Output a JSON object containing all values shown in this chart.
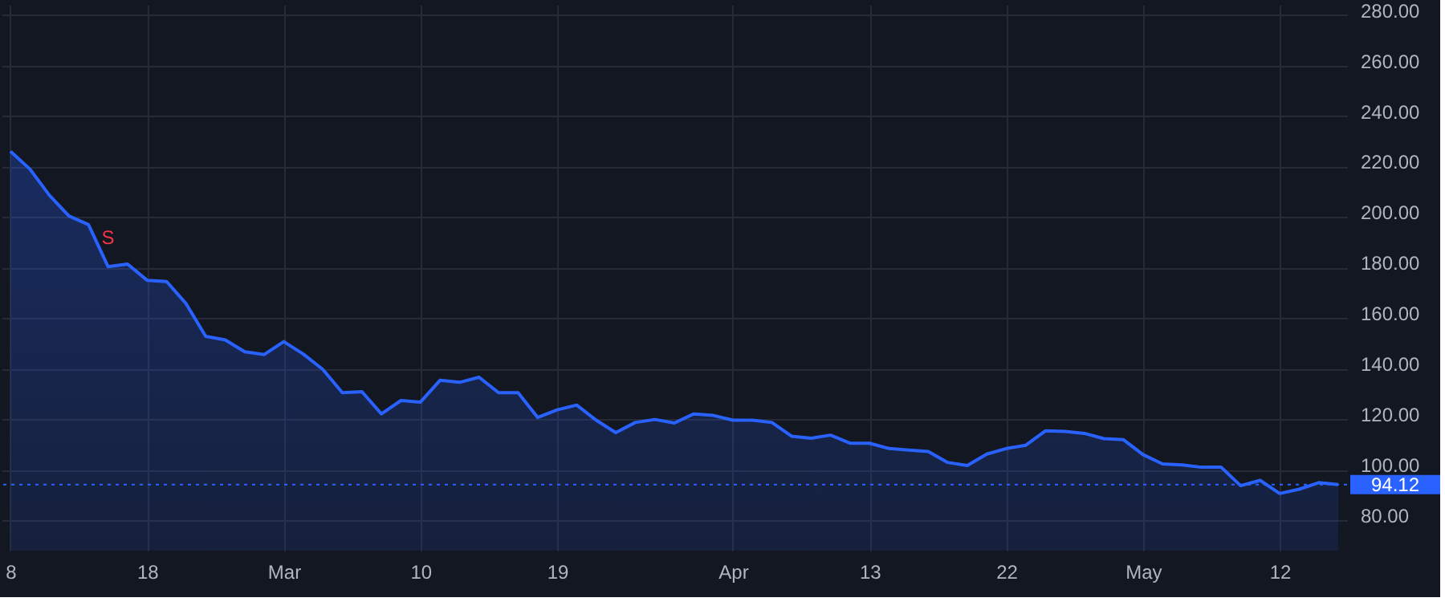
{
  "chart_data": {
    "type": "area",
    "categories": [
      "8",
      null,
      null,
      null,
      null,
      null,
      null,
      "18",
      null,
      null,
      null,
      null,
      null,
      null,
      "Mar",
      null,
      null,
      null,
      null,
      null,
      null,
      "10",
      null,
      null,
      null,
      null,
      null,
      null,
      "19",
      null,
      null,
      null,
      null,
      null,
      null,
      null,
      null,
      "Apr",
      null,
      null,
      null,
      null,
      null,
      null,
      "13",
      null,
      null,
      null,
      null,
      null,
      null,
      "22",
      null,
      null,
      null,
      null,
      null,
      null,
      "May",
      null,
      null,
      null,
      null,
      null,
      null,
      "12",
      null,
      null,
      null
    ],
    "series": [
      {
        "color": "#2962ff",
        "values": [
          226,
          219,
          208.6,
          200.4,
          197,
          180.4,
          181.4,
          175,
          174.5,
          165.7,
          152.8,
          151.4,
          146.7,
          145.6,
          150.7,
          145.8,
          139.7,
          130.5,
          130.9,
          122.1,
          127.4,
          126.8,
          135.4,
          134.6,
          136.6,
          130.5,
          130.5,
          120.7,
          123.7,
          125.6,
          119.6,
          114.7,
          118.7,
          119.9,
          118.5,
          122.1,
          121.5,
          119.6,
          119.6,
          118.7,
          113.3,
          112.5,
          113.7,
          110.5,
          110.5,
          108.4,
          107.8,
          107.2,
          102.9,
          101.7,
          106.2,
          108.4,
          109.7,
          115.4,
          115.2,
          114.4,
          112.3,
          111.9,
          106,
          102.3,
          101.9,
          101,
          101,
          93.7,
          95.8,
          90.6,
          92.3,
          94.9,
          94.12
        ]
      }
    ],
    "ylim": [
      68,
      284
    ],
    "yticks": [
      {
        "value": 80,
        "label": "80.00"
      },
      {
        "value": 100,
        "label": "100.00"
      },
      {
        "value": 120,
        "label": "120.00"
      },
      {
        "value": 140,
        "label": "140.00"
      },
      {
        "value": 160,
        "label": "160.00"
      },
      {
        "value": 180,
        "label": "180.00"
      },
      {
        "value": 200,
        "label": "200.00"
      },
      {
        "value": 220,
        "label": "220.00"
      },
      {
        "value": 240,
        "label": "240.00"
      },
      {
        "value": 260,
        "label": "260.00"
      },
      {
        "value": 280,
        "label": "280.00"
      }
    ],
    "grid": true,
    "ref_lines": [
      {
        "axis": "y",
        "value": 94.12,
        "label": "94.12",
        "color": "#2962ff",
        "line_style": "dotted"
      }
    ],
    "annotations": [
      {
        "text": "S",
        "y": 180.4
      }
    ]
  }
}
